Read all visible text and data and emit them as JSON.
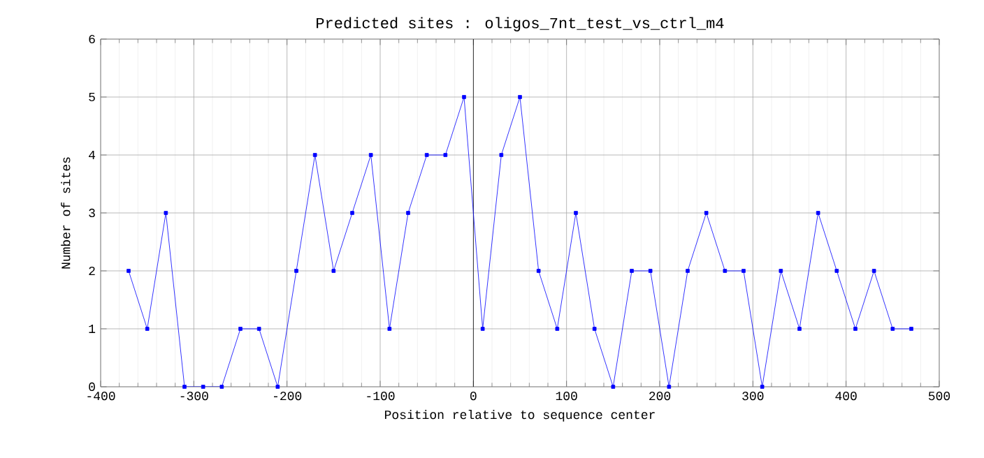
{
  "chart_data": {
    "type": "line",
    "title": "Predicted sites : oligos_7nt_test_vs_ctrl_m4",
    "xlabel": "Position relative to sequence center",
    "ylabel": "Number of sites",
    "x": [
      -370,
      -350,
      -330,
      -310,
      -290,
      -270,
      -250,
      -230,
      -210,
      -190,
      -170,
      -150,
      -130,
      -110,
      -90,
      -70,
      -50,
      -30,
      -10,
      10,
      30,
      50,
      70,
      90,
      110,
      130,
      150,
      170,
      190,
      210,
      230,
      250,
      270,
      290,
      310,
      330,
      350,
      370,
      390,
      410,
      430,
      450,
      470
    ],
    "series": [
      {
        "color": "#0000ff",
        "values": [
          2,
          1,
          3,
          0,
          0,
          0,
          1,
          1,
          0,
          2,
          4,
          2,
          3,
          4,
          1,
          3,
          4,
          4,
          5,
          1,
          4,
          5,
          2,
          1,
          3,
          1,
          0,
          2,
          2,
          0,
          2,
          3,
          2,
          2,
          0,
          2,
          1,
          3,
          2,
          1,
          2,
          1,
          1
        ]
      }
    ],
    "xlim": [
      -400,
      500
    ],
    "xticks": [
      -400,
      -300,
      -200,
      -100,
      0,
      100,
      200,
      300,
      400,
      500
    ],
    "ylim": [
      0,
      6
    ],
    "yticks": [
      0,
      1,
      2,
      3,
      4,
      5,
      6
    ],
    "ref_lines": [
      {
        "axis": "x",
        "value": 0,
        "color": "#000000"
      }
    ],
    "grid": true,
    "marker": "square",
    "line_style": "solid"
  }
}
